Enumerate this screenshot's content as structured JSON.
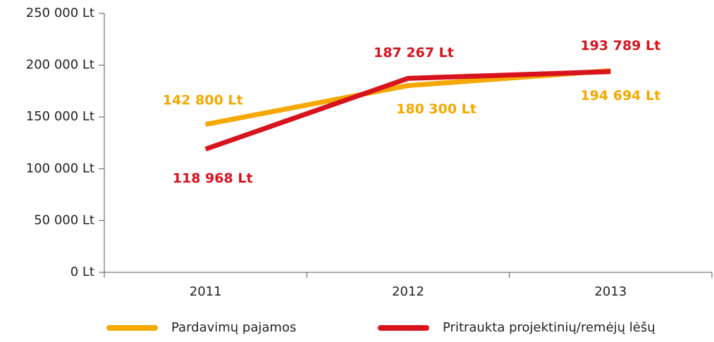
{
  "chart_data": {
    "type": "line",
    "categories": [
      "2011",
      "2012",
      "2013"
    ],
    "series": [
      {
        "name": "Pardavimų pajamos",
        "color": "#f5a800",
        "values": [
          142800,
          180300,
          194694
        ],
        "value_labels": [
          "142 800 Lt",
          "180 300 Lt",
          "194 694 Lt"
        ]
      },
      {
        "name": "Pritraukta projektinių/remėjų lėšų",
        "color": "#d7141e",
        "values": [
          118968,
          187267,
          193789
        ],
        "value_labels": [
          "118 968 Lt",
          "187 267 Lt",
          "193 789 Lt"
        ]
      }
    ],
    "ylim": [
      0,
      250000
    ],
    "yticks": [
      {
        "value": 0,
        "label": "0 Lt"
      },
      {
        "value": 50000,
        "label": "50 000 Lt"
      },
      {
        "value": 100000,
        "label": "100 000 Lt"
      },
      {
        "value": 150000,
        "label": "150 000 Lt"
      },
      {
        "value": 200000,
        "label": "200 000 Lt"
      },
      {
        "value": 250000,
        "label": "250 000 Lt"
      }
    ],
    "legend": "bottom"
  }
}
